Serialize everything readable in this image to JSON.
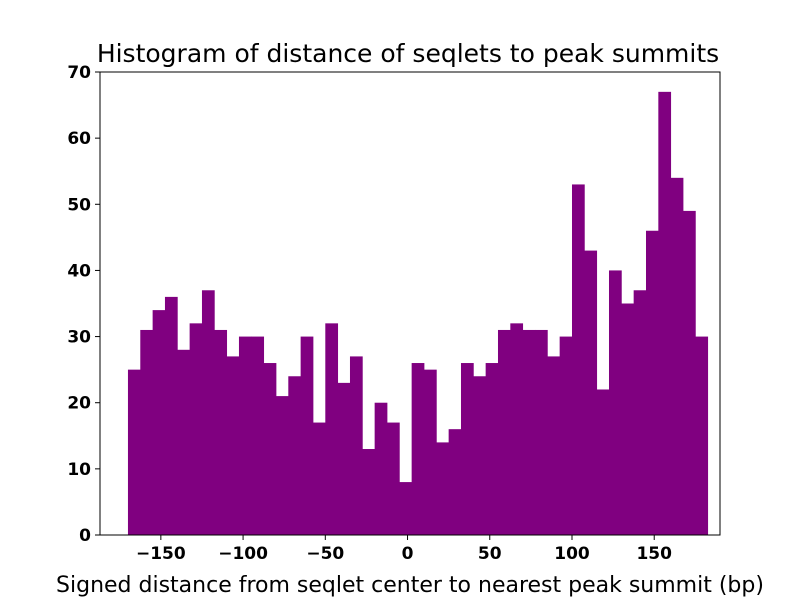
{
  "chart_data": {
    "type": "bar",
    "title": "Histogram of distance of seqlets to peak summits",
    "xlabel": "Signed distance from seqlet center to nearest peak summit (bp)",
    "ylabel": "",
    "bar_color": "#800080",
    "xlim": [
      -187,
      190
    ],
    "ylim": [
      0,
      70
    ],
    "bin_start": -170,
    "bin_width": 7.5,
    "values": [
      25,
      31,
      34,
      36,
      28,
      32,
      37,
      31,
      27,
      30,
      30,
      26,
      21,
      24,
      30,
      17,
      32,
      23,
      27,
      13,
      20,
      17,
      8,
      26,
      25,
      14,
      16,
      26,
      24,
      26,
      31,
      32,
      31,
      31,
      27,
      30,
      53,
      43,
      22,
      40,
      35,
      37,
      46,
      67,
      54,
      49,
      30
    ],
    "x_ticks": [
      -150,
      -100,
      -50,
      0,
      50,
      100,
      150
    ],
    "x_tick_labels": [
      "−150",
      "−100",
      "−50",
      "0",
      "50",
      "100",
      "150"
    ],
    "y_ticks": [
      0,
      10,
      20,
      30,
      40,
      50,
      60,
      70
    ],
    "y_tick_labels": [
      "0",
      "10",
      "20",
      "30",
      "40",
      "50",
      "60",
      "70"
    ],
    "grid": false,
    "legend": "none"
  }
}
